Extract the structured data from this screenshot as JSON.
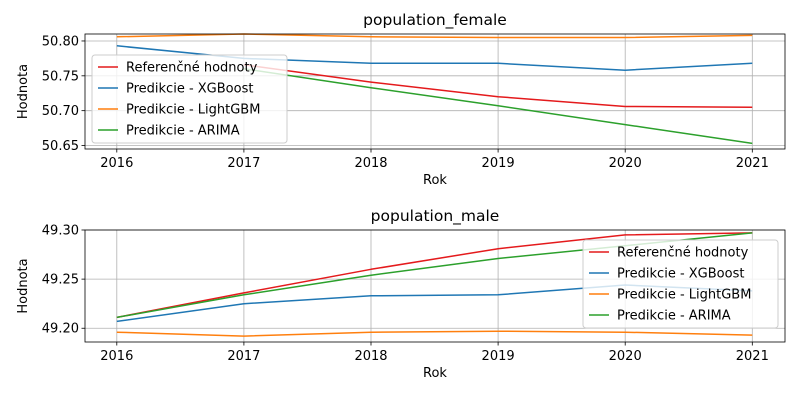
{
  "chart_data": [
    {
      "type": "line",
      "title": "population_female",
      "xlabel": "Rok",
      "ylabel": "Hodnota",
      "x": [
        2016,
        2017,
        2018,
        2019,
        2020,
        2021
      ],
      "xticks": [
        "2016",
        "2017",
        "2018",
        "2019",
        "2020",
        "2021"
      ],
      "yticks": [
        "50.65",
        "50.70",
        "50.75",
        "50.80"
      ],
      "ylim": [
        50.645,
        50.81
      ],
      "grid": true,
      "legend_position": "top-left",
      "series": [
        {
          "name": "Referenčné hodnoty",
          "color": "#e41a1c",
          "values": [
            null,
            50.766,
            50.741,
            50.72,
            50.706,
            50.705
          ]
        },
        {
          "name": "Predikcie - XGBoost",
          "color": "#1f77b4",
          "values": [
            50.793,
            50.775,
            50.768,
            50.768,
            50.758,
            50.768
          ]
        },
        {
          "name": "Predikcie - LightGBM",
          "color": "#ff7f0e",
          "values": [
            50.806,
            50.81,
            50.806,
            50.805,
            50.805,
            50.808
          ]
        },
        {
          "name": "Predikcie - ARIMA",
          "color": "#2ca02c",
          "values": [
            null,
            50.76,
            50.733,
            50.707,
            50.68,
            50.653
          ]
        }
      ]
    },
    {
      "type": "line",
      "title": "population_male",
      "xlabel": "Rok",
      "ylabel": "Hodnota",
      "x": [
        2016,
        2017,
        2018,
        2019,
        2020,
        2021
      ],
      "xticks": [
        "2016",
        "2017",
        "2018",
        "2019",
        "2020",
        "2021"
      ],
      "yticks": [
        "49.20",
        "49.25",
        "49.30"
      ],
      "ylim": [
        49.186,
        49.3
      ],
      "grid": true,
      "legend_position": "right",
      "series": [
        {
          "name": "Referenčné hodnoty",
          "color": "#e41a1c",
          "values": [
            49.211,
            49.236,
            49.26,
            49.281,
            49.295,
            49.297
          ]
        },
        {
          "name": "Predikcie - XGBoost",
          "color": "#1f77b4",
          "values": [
            49.207,
            49.225,
            49.233,
            49.234,
            49.244,
            49.238
          ]
        },
        {
          "name": "Predikcie - LightGBM",
          "color": "#ff7f0e",
          "values": [
            49.196,
            49.192,
            49.196,
            49.197,
            49.196,
            49.193
          ]
        },
        {
          "name": "Predikcie - ARIMA",
          "color": "#2ca02c",
          "values": [
            49.211,
            49.234,
            49.254,
            49.271,
            49.284,
            49.297
          ]
        }
      ]
    }
  ]
}
